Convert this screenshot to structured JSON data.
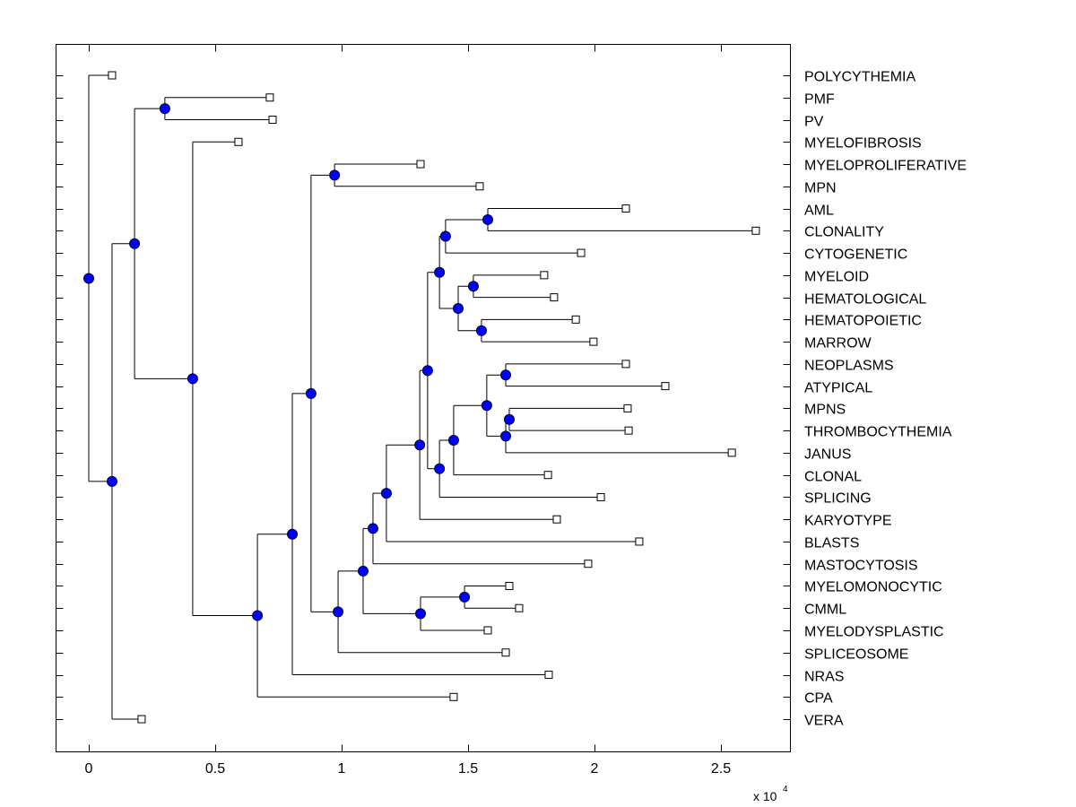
{
  "chart_data": {
    "type": "dendrogram",
    "title": "",
    "xlabel": "",
    "x_scale_label": "x 10",
    "x_scale_exponent": "4",
    "xlim": [
      -0.13,
      2.79
    ],
    "xticks": [
      0,
      0.5,
      1,
      1.5,
      2,
      2.5
    ],
    "xtick_labels": [
      "0",
      "0.5",
      "1",
      "1.5",
      "2",
      "2.5"
    ],
    "grid": false,
    "colors": {
      "internal_node_fill": "#0000ff",
      "internal_node_edge": "#000033",
      "leaf_fill": "#ffffff",
      "leaf_edge": "#000000",
      "edge": "#000000"
    },
    "leaves": [
      {
        "id": "POLYCYTHEMIA",
        "x": 0.092
      },
      {
        "id": "PMF",
        "x": 0.716
      },
      {
        "id": "PV",
        "x": 0.727
      },
      {
        "id": "MYELOFIBROSIS",
        "x": 0.592
      },
      {
        "id": "MYELOPROLIFERATIVE",
        "x": 1.312
      },
      {
        "id": "MPN",
        "x": 1.546
      },
      {
        "id": "AML",
        "x": 2.124
      },
      {
        "id": "CLONALITY",
        "x": 2.638
      },
      {
        "id": "CYTOGENETIC",
        "x": 1.947
      },
      {
        "id": "MYELOID",
        "x": 1.801
      },
      {
        "id": "HEMATOLOGICAL",
        "x": 1.84
      },
      {
        "id": "HEMATOPOIETIC",
        "x": 1.926
      },
      {
        "id": "MARROW",
        "x": 1.996
      },
      {
        "id": "NEOPLASMS",
        "x": 2.124
      },
      {
        "id": "ATYPICAL",
        "x": 2.28
      },
      {
        "id": "MPNS",
        "x": 2.131
      },
      {
        "id": "THROMBOCYTHEMIA",
        "x": 2.135
      },
      {
        "id": "JANUS",
        "x": 2.543
      },
      {
        "id": "CLONAL",
        "x": 1.816
      },
      {
        "id": "SPLICING",
        "x": 2.025
      },
      {
        "id": "KARYOTYPE",
        "x": 1.851
      },
      {
        "id": "BLASTS",
        "x": 2.177
      },
      {
        "id": "MASTOCYTOSIS",
        "x": 1.975
      },
      {
        "id": "MYELOMONOCYTIC",
        "x": 1.663
      },
      {
        "id": "CMML",
        "x": 1.702
      },
      {
        "id": "MYELODYSPLASTIC",
        "x": 1.578
      },
      {
        "id": "SPLICEOSOME",
        "x": 1.649
      },
      {
        "id": "NRAS",
        "x": 1.819
      },
      {
        "id": "CPA",
        "x": 1.443
      },
      {
        "id": "VERA",
        "x": 0.209
      }
    ],
    "internal_nodes": [
      {
        "id": "n_root",
        "x": 0.0,
        "children": [
          "POLYCYTHEMIA",
          "n_vera"
        ]
      },
      {
        "id": "n_vera",
        "x": 0.092,
        "children": [
          "n_a",
          "VERA"
        ]
      },
      {
        "id": "n_a",
        "x": 0.181,
        "children": [
          "n_pmf",
          "n_b"
        ]
      },
      {
        "id": "n_pmf",
        "x": 0.301,
        "children": [
          "PMF",
          "PV"
        ]
      },
      {
        "id": "n_b",
        "x": 0.411,
        "children": [
          "MYELOFIBROSIS",
          "n_c"
        ]
      },
      {
        "id": "n_c",
        "x": 0.667,
        "children": [
          "n_d",
          "CPA"
        ]
      },
      {
        "id": "n_d",
        "x": 0.805,
        "children": [
          "n_e",
          "NRAS"
        ]
      },
      {
        "id": "n_e",
        "x": 0.879,
        "children": [
          "n_mpn",
          "n_f"
        ]
      },
      {
        "id": "n_mpn",
        "x": 0.972,
        "children": [
          "MYELOPROLIFERATIVE",
          "MPN"
        ]
      },
      {
        "id": "n_f",
        "x": 0.986,
        "children": [
          "n_g",
          "SPLICEOSOME"
        ]
      },
      {
        "id": "n_g",
        "x": 1.085,
        "children": [
          "n_h",
          "n_cmml1"
        ]
      },
      {
        "id": "n_h",
        "x": 1.124,
        "children": [
          "n_i",
          "MASTOCYTOSIS"
        ]
      },
      {
        "id": "n_i",
        "x": 1.177,
        "children": [
          "n_j",
          "BLASTS"
        ]
      },
      {
        "id": "n_j",
        "x": 1.309,
        "children": [
          "n_k",
          "KARYOTYPE"
        ]
      },
      {
        "id": "n_k",
        "x": 1.34,
        "children": [
          "n_l",
          "n_q"
        ]
      },
      {
        "id": "n_l",
        "x": 1.387,
        "children": [
          "n_m",
          "n_n"
        ]
      },
      {
        "id": "n_m",
        "x": 1.411,
        "children": [
          "n_aml",
          "CYTOGENETIC"
        ]
      },
      {
        "id": "n_aml",
        "x": 1.578,
        "children": [
          "AML",
          "CLONALITY"
        ]
      },
      {
        "id": "n_n",
        "x": 1.461,
        "children": [
          "n_o",
          "n_p"
        ]
      },
      {
        "id": "n_o",
        "x": 1.521,
        "children": [
          "MYELOID",
          "HEMATOLOGICAL"
        ]
      },
      {
        "id": "n_p",
        "x": 1.553,
        "children": [
          "HEMATOPOIETIC",
          "MARROW"
        ]
      },
      {
        "id": "n_q",
        "x": 1.387,
        "children": [
          "n_r",
          "SPLICING"
        ]
      },
      {
        "id": "n_r",
        "x": 1.443,
        "children": [
          "n_s",
          "CLONAL"
        ]
      },
      {
        "id": "n_s",
        "x": 1.574,
        "children": [
          "n_t",
          "n_u"
        ]
      },
      {
        "id": "n_t",
        "x": 1.649,
        "children": [
          "NEOPLASMS",
          "ATYPICAL"
        ]
      },
      {
        "id": "n_u",
        "x": 1.649,
        "children": [
          "n_v",
          "JANUS"
        ]
      },
      {
        "id": "n_v",
        "x": 1.663,
        "children": [
          "MPNS",
          "THROMBOCYTHEMIA"
        ]
      },
      {
        "id": "n_cmml1",
        "x": 1.312,
        "children": [
          "n_cmml2",
          "MYELODYSPLASTIC"
        ]
      },
      {
        "id": "n_cmml2",
        "x": 1.486,
        "children": [
          "MYELOMONOCYTIC",
          "CMML"
        ]
      }
    ]
  }
}
